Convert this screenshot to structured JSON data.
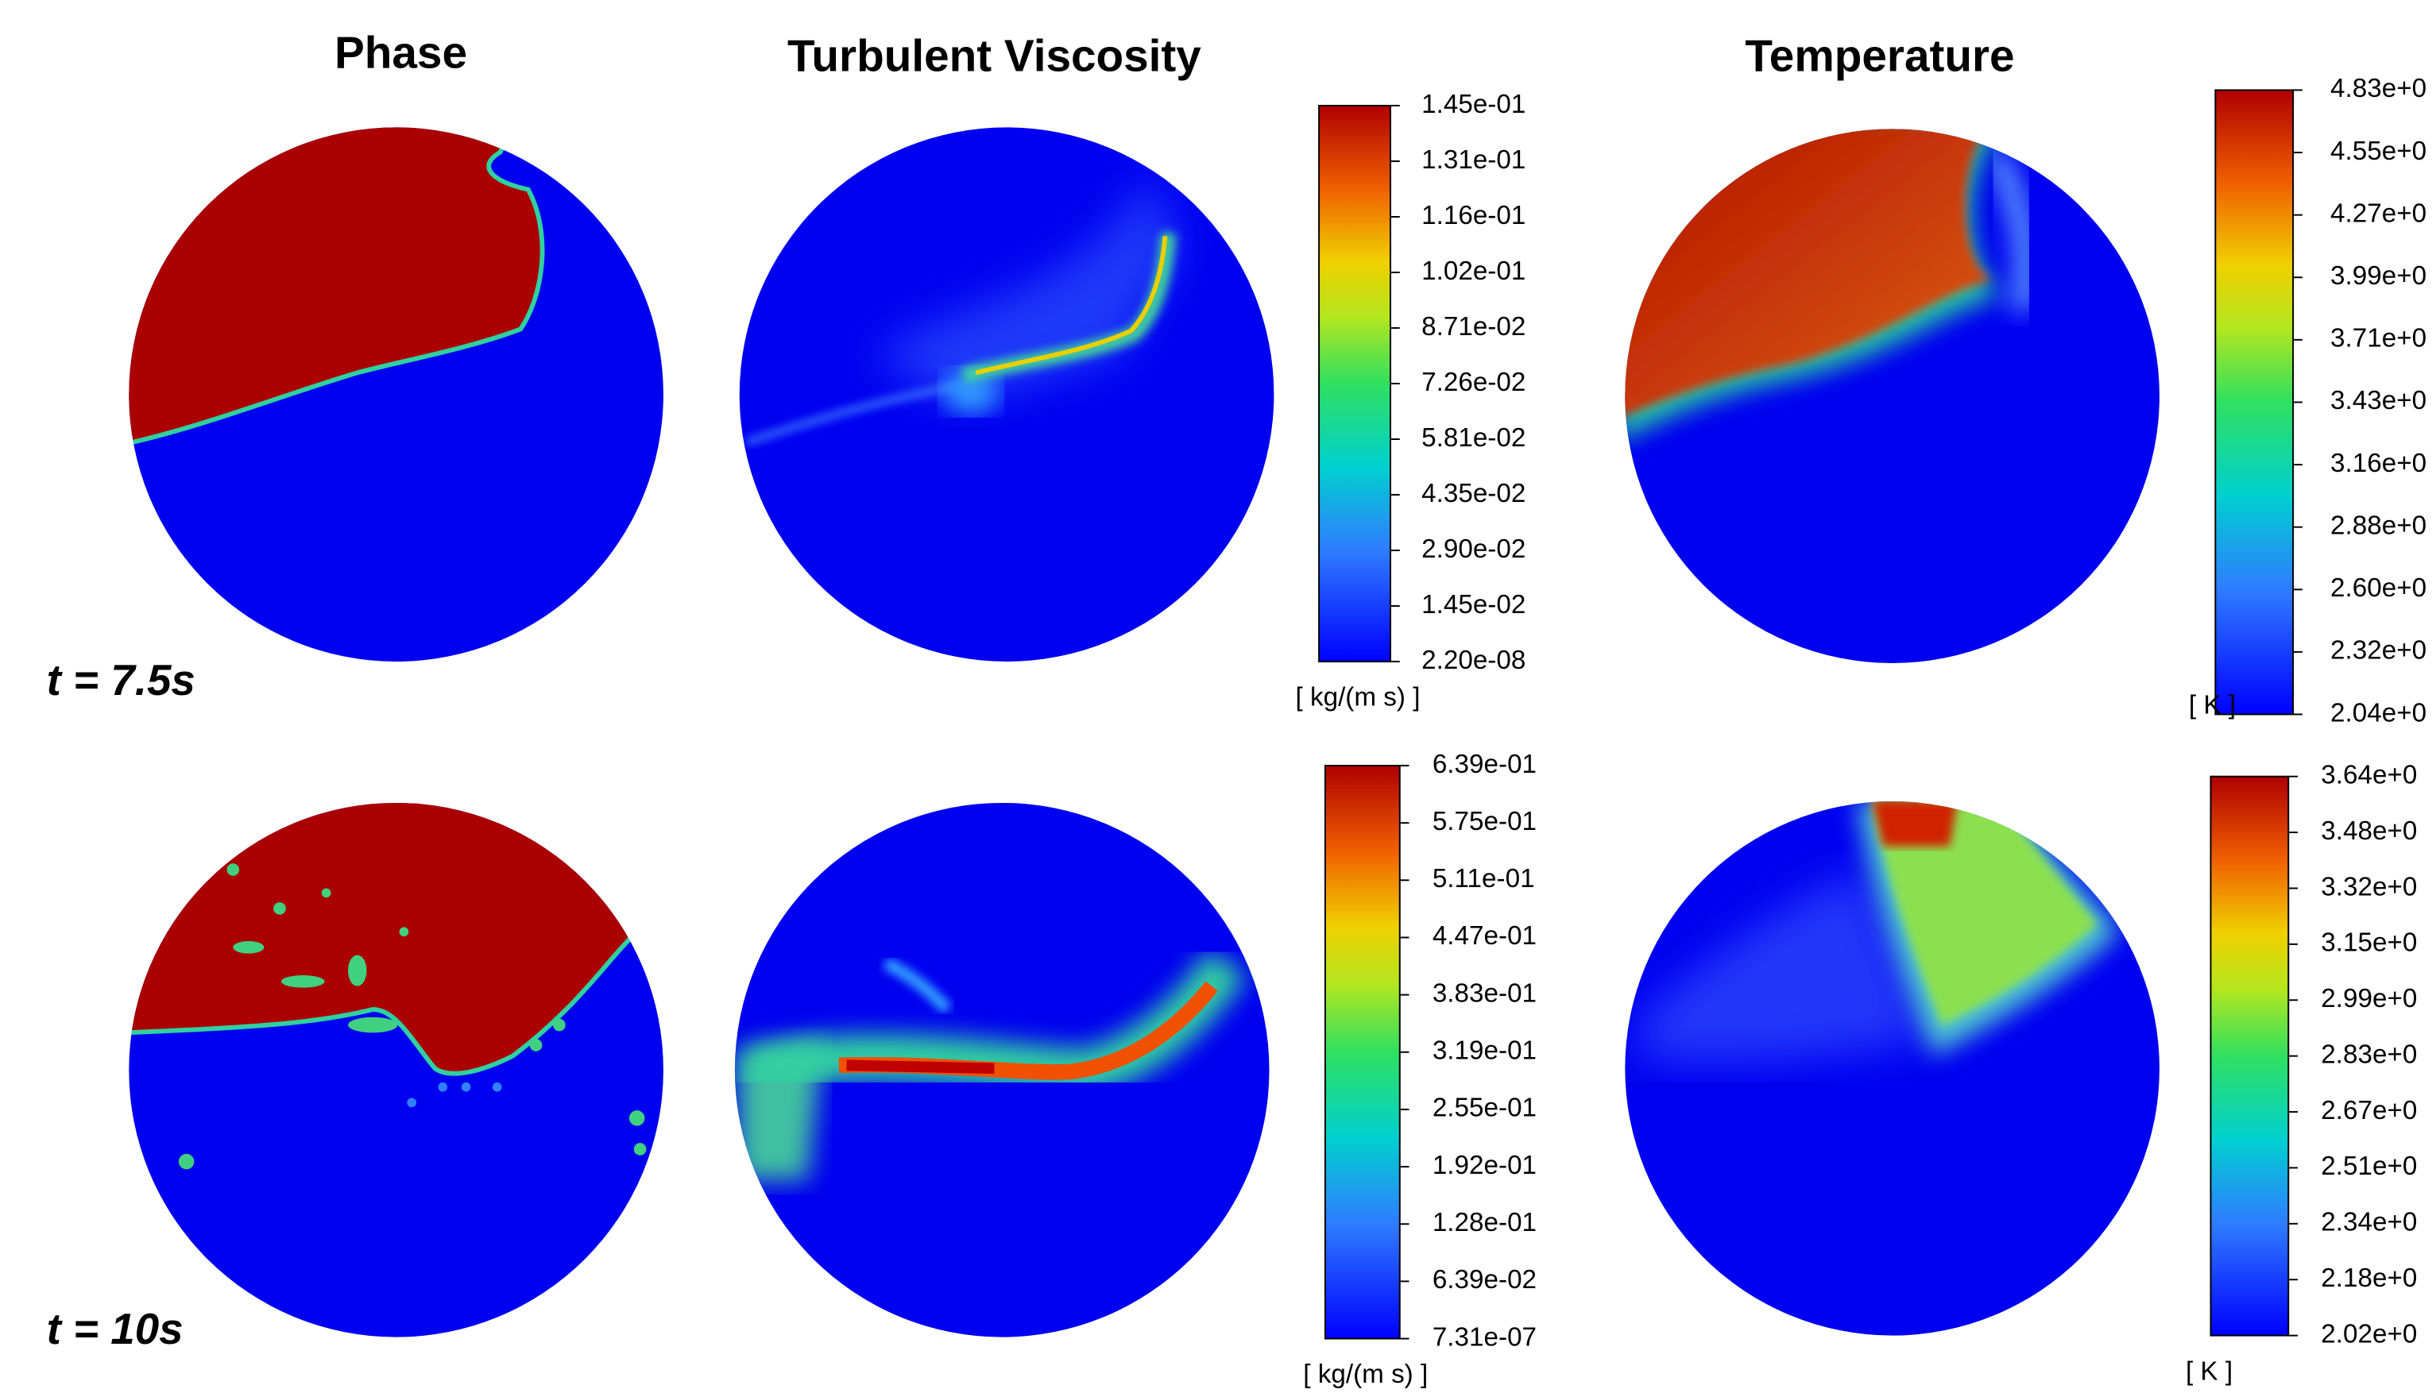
{
  "panels": {
    "titles": [
      "Phase",
      "Turbulent Viscosity",
      "Temperature"
    ],
    "times": [
      "t = 7.5s",
      "t = 10s"
    ]
  },
  "colorbars": [
    {
      "unit": "[ kg/(m s) ]",
      "ticks": [
        "1.45e-01",
        "1.31e-01",
        "1.16e-01",
        "1.02e-01",
        "8.71e-02",
        "7.26e-02",
        "5.81e-02",
        "4.35e-02",
        "2.90e-02",
        "1.45e-02",
        "2.20e-08"
      ]
    },
    {
      "unit": "[ K ]",
      "ticks": [
        "4.83e+0",
        "4.55e+0",
        "4.27e+0",
        "3.99e+0",
        "3.71e+0",
        "3.43e+0",
        "3.16e+0",
        "2.88e+0",
        "2.60e+0",
        "2.32e+0",
        "2.04e+0"
      ]
    },
    {
      "unit": "[ kg/(m s) ]",
      "ticks": [
        "6.39e-01",
        "5.75e-01",
        "5.11e-01",
        "4.47e-01",
        "3.83e-01",
        "3.19e-01",
        "2.55e-01",
        "1.92e-01",
        "1.28e-01",
        "6.39e-02",
        "7.31e-07"
      ]
    },
    {
      "unit": "[ K ]",
      "ticks": [
        "3.64e+0",
        "3.48e+0",
        "3.32e+0",
        "3.15e+0",
        "2.99e+0",
        "2.83e+0",
        "2.67e+0",
        "2.51e+0",
        "2.34e+0",
        "2.18e+0",
        "2.02e+0"
      ]
    }
  ]
}
